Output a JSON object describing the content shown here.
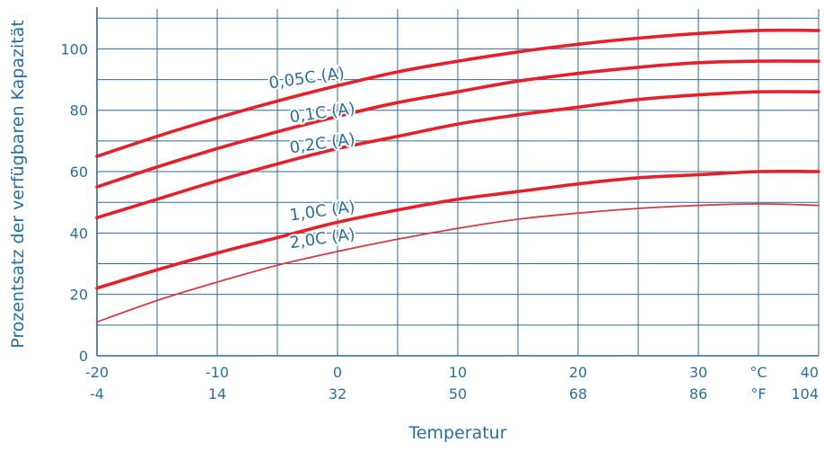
{
  "chart_data": {
    "type": "line",
    "title": "",
    "xlabel": "Temperatur",
    "ylabel": "Prozentsatz der verfügbaren Kapazität",
    "xlim": [
      -20,
      40
    ],
    "ylim": [
      0,
      113
    ],
    "grid": true,
    "x_ticks": [
      {
        "x": -20,
        "c": "-20",
        "f": "-4"
      },
      {
        "x": -10,
        "c": "-10",
        "f": "14"
      },
      {
        "x": 0,
        "c": "0",
        "f": "32"
      },
      {
        "x": 10,
        "c": "10",
        "f": "50"
      },
      {
        "x": 20,
        "c": "20",
        "f": "68"
      },
      {
        "x": 30,
        "c": "30",
        "f": "86"
      },
      {
        "x": 40,
        "c": "40",
        "f": "104"
      }
    ],
    "unit_c": "°C",
    "unit_f": "°F",
    "y_ticks": [
      0,
      20,
      40,
      60,
      80,
      100
    ],
    "series": [
      {
        "name": "0,05C (A)",
        "color": "#e5202a",
        "width": 3.6,
        "x": [
          -20,
          -15,
          -10,
          -5,
          0,
          5,
          10,
          15,
          20,
          25,
          30,
          35,
          40
        ],
        "y": [
          65,
          71.5,
          77.5,
          83,
          88,
          92.5,
          96,
          99,
          101.5,
          103.5,
          105,
          106,
          106
        ]
      },
      {
        "name": "0,1C (A)",
        "color": "#e5202a",
        "width": 3.6,
        "x": [
          -20,
          -15,
          -10,
          -5,
          0,
          5,
          10,
          15,
          20,
          25,
          30,
          35,
          40
        ],
        "y": [
          55,
          61.5,
          67.5,
          73,
          78,
          82.5,
          86,
          89.5,
          92,
          94,
          95.5,
          96,
          96
        ]
      },
      {
        "name": "0,2C (A)",
        "color": "#e5202a",
        "width": 3.6,
        "x": [
          -20,
          -15,
          -10,
          -5,
          0,
          5,
          10,
          15,
          20,
          25,
          30,
          35,
          40
        ],
        "y": [
          45,
          51,
          57,
          62.5,
          67.5,
          71.5,
          75.5,
          78.5,
          81,
          83.5,
          85,
          86,
          86
        ]
      },
      {
        "name": "1,0C (A)",
        "color": "#e5202a",
        "width": 3.6,
        "x": [
          -20,
          -15,
          -10,
          -5,
          0,
          5,
          10,
          15,
          20,
          25,
          30,
          35,
          40
        ],
        "y": [
          22,
          28,
          33.5,
          38.5,
          43.5,
          47.5,
          51,
          53.5,
          56,
          58,
          59,
          60,
          60
        ]
      },
      {
        "name": "2,0C (A)",
        "color": "#d63a45",
        "width": 1.8,
        "x": [
          -20,
          -15,
          -10,
          -5,
          0,
          5,
          10,
          15,
          20,
          25,
          30,
          35,
          40
        ],
        "y": [
          11,
          18,
          24,
          29.5,
          34,
          38,
          41.5,
          44.5,
          46.5,
          48,
          49,
          49.5,
          49
        ]
      }
    ],
    "annotations": [
      {
        "text": "0,05C (A)",
        "series": 0,
        "x": -2.5,
        "y": 88.8,
        "angle": -8
      },
      {
        "text": "0,1C (A)",
        "series": 1,
        "x": -1.2,
        "y": 77.5,
        "angle": -8
      },
      {
        "text": "0,2C (A)",
        "series": 2,
        "x": -1.2,
        "y": 67.5,
        "angle": -8
      },
      {
        "text": "1,0C (A)",
        "series": 3,
        "x": -1.2,
        "y": 45.5,
        "angle": -8
      },
      {
        "text": "2,0C (A)",
        "series": 4,
        "x": -1.2,
        "y": 36.5,
        "angle": -8
      }
    ]
  }
}
